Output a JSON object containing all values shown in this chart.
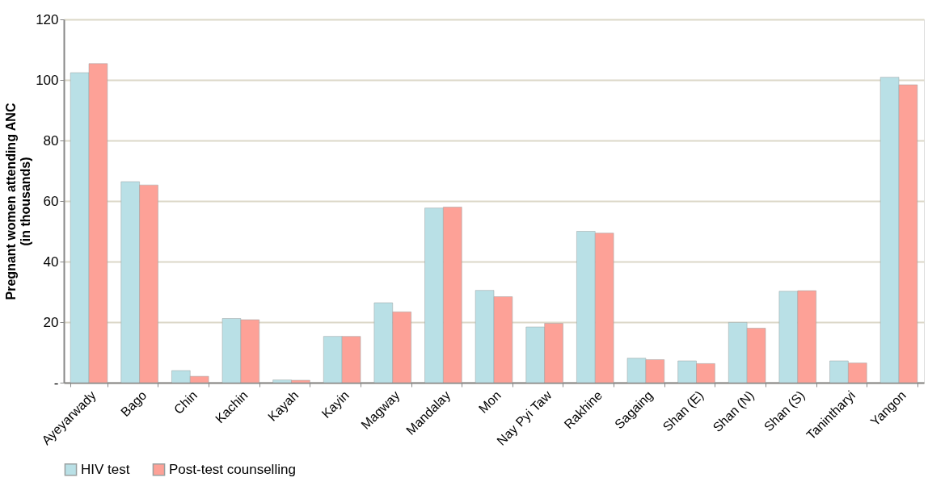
{
  "chart_data": {
    "type": "bar",
    "ylabel": "Pregnant women attending ANC\n(in thousands)",
    "categories": [
      "Ayeyarwady",
      "Bago",
      "Chin",
      "Kachin",
      "Kayah",
      "Kayin",
      "Magway",
      "Mandalay",
      "Mon",
      "Nay Pyi Taw",
      "Rakhine",
      "Sagaing",
      "Shan (E)",
      "Shan (N)",
      "Shan (S)",
      "Tanintharyi",
      "Yangon"
    ],
    "series": [
      {
        "name": "HIV test",
        "color": "#b9e0e6",
        "values": [
          102.4,
          66.4,
          4.0,
          21.2,
          0.9,
          15.3,
          26.4,
          57.7,
          30.5,
          18.4,
          50.0,
          8.1,
          7.2,
          19.9,
          30.2,
          7.2,
          100.9
        ]
      },
      {
        "name": "Post-test counselling",
        "color": "#fda197",
        "values": [
          105.4,
          65.3,
          2.1,
          20.8,
          0.8,
          15.3,
          23.4,
          58.0,
          28.4,
          19.6,
          49.4,
          7.6,
          6.3,
          18.0,
          30.4,
          6.5,
          98.4
        ]
      }
    ],
    "ylim": [
      0,
      120
    ],
    "yticks": [
      {
        "value": 0,
        "label": "-"
      },
      20,
      40,
      60,
      80,
      100,
      120
    ],
    "grid": "y",
    "legend": "bottom"
  }
}
